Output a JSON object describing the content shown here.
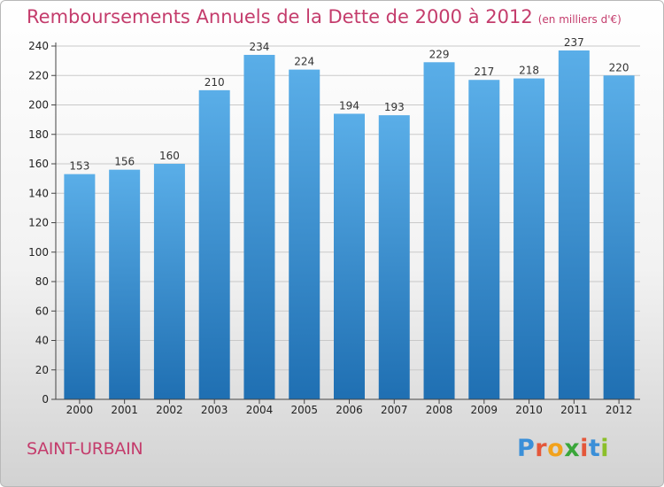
{
  "title": "Remboursements Annuels de la Dette de 2000 à 2012",
  "subtitle": "(en milliers d'€)",
  "commune": "SAINT-URBAIN",
  "logo": {
    "text": "Proxiti",
    "letters": [
      "P",
      "r",
      "o",
      "x",
      "i",
      "t",
      "i"
    ],
    "colors": [
      "#3a8fd8",
      "#e4573a",
      "#f2a21c",
      "#3aa63a",
      "#e4573a",
      "#3a8fd8",
      "#8cbf2a"
    ]
  },
  "colors": {
    "title": "#c43c6c",
    "bar_top": "#5aaee8",
    "bar_bottom": "#1f6fb2",
    "grid": "#c9c9c9"
  },
  "chart_data": {
    "type": "bar",
    "title": "Remboursements Annuels de la Dette de 2000 à 2012",
    "xlabel": "",
    "ylabel": "",
    "categories": [
      "2000",
      "2001",
      "2002",
      "2003",
      "2004",
      "2005",
      "2006",
      "2007",
      "2008",
      "2009",
      "2010",
      "2011",
      "2012"
    ],
    "values": [
      153,
      156,
      160,
      210,
      234,
      224,
      194,
      193,
      229,
      217,
      218,
      237,
      220
    ],
    "ylim": [
      0,
      240
    ],
    "yticks": [
      0,
      20,
      40,
      60,
      80,
      100,
      120,
      140,
      160,
      180,
      200,
      220,
      240
    ],
    "grid": true,
    "data_labels": true
  }
}
